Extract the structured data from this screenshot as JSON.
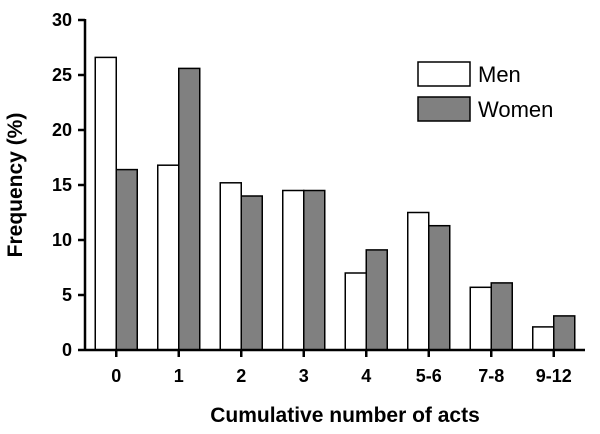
{
  "chart_data": {
    "type": "bar",
    "xlabel": "Cumulative number of acts",
    "ylabel": "Frequency (%)",
    "categories": [
      "0",
      "1",
      "2",
      "3",
      "4",
      "5-6",
      "7-8",
      "9-12"
    ],
    "series": [
      {
        "name": "Men",
        "color": "#ffffff",
        "values": [
          26.6,
          16.8,
          15.2,
          14.5,
          7.0,
          12.5,
          5.7,
          2.1
        ]
      },
      {
        "name": "Women",
        "color": "#808080",
        "values": [
          16.4,
          25.6,
          14.0,
          14.5,
          9.1,
          11.3,
          6.1,
          3.1
        ]
      }
    ],
    "ylim": [
      0,
      30
    ],
    "yticks": [
      0,
      5,
      10,
      15,
      20,
      25,
      30
    ],
    "grid": false,
    "legend_position": "top-right"
  }
}
